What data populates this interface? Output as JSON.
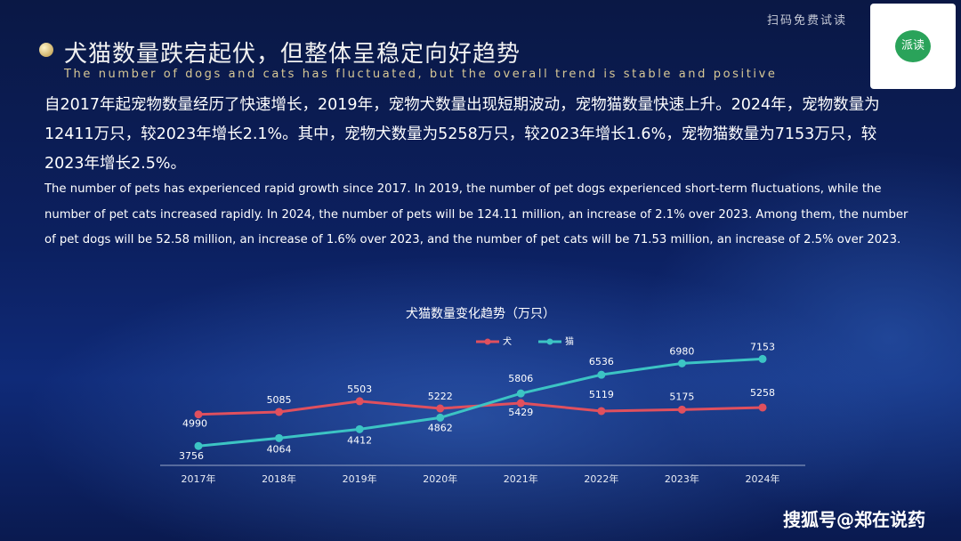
{
  "header": {
    "promo": "扫码免费试读",
    "qr_label": "派读",
    "title": "犬猫数量跌宕起伏，但整体呈稳定向好趋势",
    "subtitle": "The number of dogs and cats has fluctuated, but the overall trend is stable and positive"
  },
  "description": {
    "zh": "自2017年起宠物数量经历了快速增长，2019年，宠物犬数量出现短期波动，宠物猫数量快速上升。2024年，宠物数量为12411万只，较2023年增长2.1%。其中，宠物犬数量为5258万只，较2023年增长1.6%，宠物猫数量为7153万只，较2023年增长2.5%。",
    "en": "The number of pets has experienced rapid growth since 2017. In 2019, the number of pet dogs experienced short-term fluctuations, while the number of pet cats increased rapidly. In 2024, the number of pets will be 124.11 million, an increase of 2.1% over 2023. Among them, the number of pet dogs will be 52.58 million, an increase of 1.6% over 2023, and the number of pet cats will be 71.53 million, an increase of 2.5% over 2023."
  },
  "chart_data": {
    "type": "line",
    "title": "犬猫数量变化趋势（万只）",
    "categories": [
      "2017年",
      "2018年",
      "2019年",
      "2020年",
      "2021年",
      "2022年",
      "2023年",
      "2024年"
    ],
    "series": [
      {
        "name": "犬",
        "color": "#e0505e",
        "values": [
          4990,
          5085,
          5503,
          5222,
          5429,
          5119,
          5175,
          5258
        ]
      },
      {
        "name": "猫",
        "color": "#3cc4c4",
        "values": [
          3756,
          4064,
          4412,
          4862,
          5806,
          6536,
          6980,
          7153
        ]
      }
    ],
    "ylim": [
      3000,
      8000
    ],
    "legend": "top"
  },
  "watermark": "搜狐号@郑在说药"
}
